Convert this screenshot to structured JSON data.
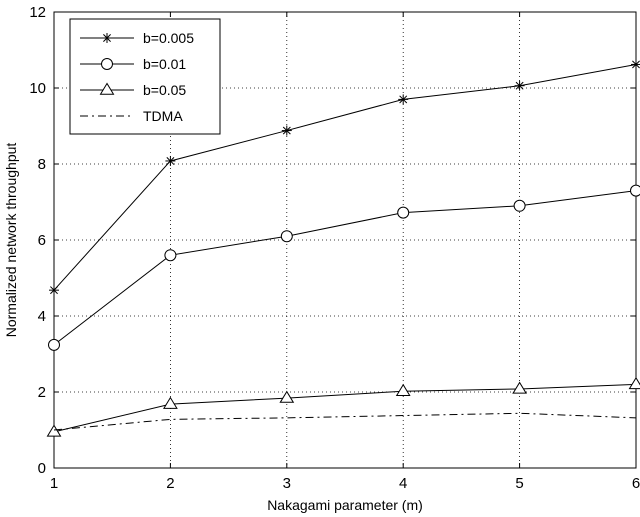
{
  "chart_data": {
    "type": "line",
    "xlabel": "Nakagami parameter (m)",
    "ylabel": "Normalized network throughput",
    "xlim": [
      1,
      6
    ],
    "ylim": [
      0,
      12
    ],
    "x_ticks": [
      "1",
      "2",
      "3",
      "4",
      "5",
      "6"
    ],
    "y_ticks": [
      "0",
      "2",
      "4",
      "6",
      "8",
      "10",
      "12"
    ],
    "grid": true,
    "legend_position": "top-left",
    "x": [
      1,
      2,
      3,
      4,
      5,
      6
    ],
    "series": [
      {
        "name": "b=0.005",
        "marker": "asterisk",
        "line": "solid",
        "color": "#000000",
        "values": [
          4.68,
          8.08,
          8.88,
          9.7,
          10.06,
          10.62
        ]
      },
      {
        "name": "b=0.01",
        "marker": "circle",
        "line": "solid",
        "color": "#000000",
        "values": [
          3.24,
          5.6,
          6.1,
          6.72,
          6.9,
          7.3
        ]
      },
      {
        "name": "b=0.05",
        "marker": "triangle",
        "line": "solid",
        "color": "#000000",
        "values": [
          0.95,
          1.68,
          1.84,
          2.02,
          2.08,
          2.2
        ]
      },
      {
        "name": "TDMA",
        "marker": "none",
        "line": "dashdot",
        "color": "#000000",
        "values": [
          1.0,
          1.28,
          1.32,
          1.38,
          1.44,
          1.32
        ]
      }
    ]
  }
}
